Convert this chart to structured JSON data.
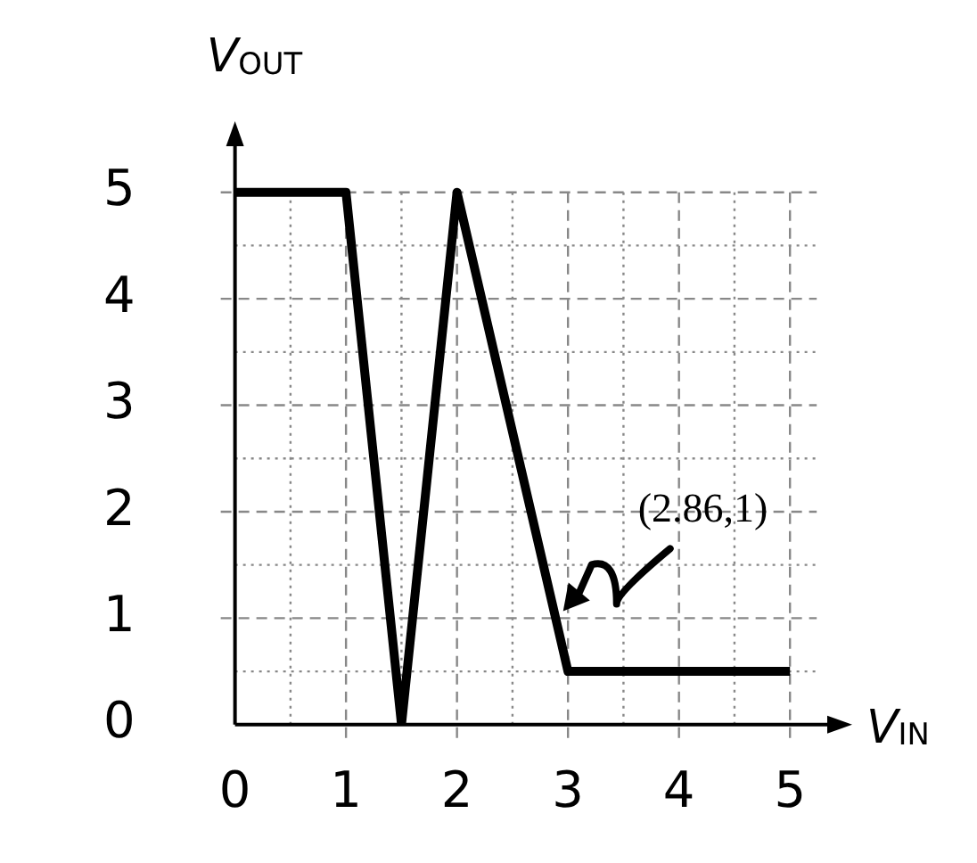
{
  "chart_data": {
    "type": "line",
    "xlabel": "V$_{IN}$",
    "ylabel": "V$_{OUT}$",
    "x": [
      0,
      1,
      1.5,
      2,
      3,
      5
    ],
    "series": [
      {
        "color": "#000000",
        "values": [
          5,
          5,
          0,
          5,
          0.5,
          0.5
        ]
      }
    ],
    "xlim": [
      0,
      5.4
    ],
    "ylim": [
      0,
      5.5
    ],
    "xticks": [
      0,
      {
        "value": 0.5,
        "label": null
      },
      1,
      {
        "value": 1.5,
        "label": null
      },
      2,
      {
        "value": 2.5,
        "label": null
      },
      3,
      {
        "value": 3.5,
        "label": null
      },
      4,
      {
        "value": 4.5,
        "label": null
      },
      5
    ],
    "yticks": [
      0,
      {
        "value": 0.5,
        "label": null
      },
      1,
      {
        "value": 1.5,
        "label": null
      },
      2,
      {
        "value": 2.5,
        "label": null
      },
      3,
      {
        "value": 3.5,
        "label": null
      },
      4,
      {
        "value": 4.5,
        "label": null
      },
      5
    ],
    "grid": true,
    "legend": false,
    "marker": "none",
    "line_style": "solid",
    "annotations": [
      {
        "text": "(2.86,1)",
        "x": 2.86,
        "y": 1
      }
    ]
  }
}
